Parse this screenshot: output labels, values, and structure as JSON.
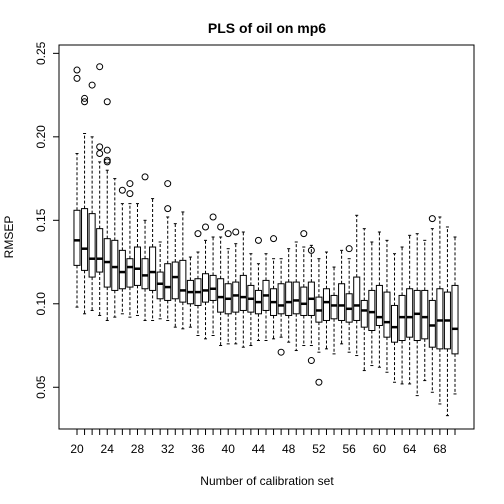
{
  "chart_data": {
    "type": "box",
    "title": "PLS of oil on mp6",
    "xlabel": "Number of calibration set",
    "ylabel": "RMSEP",
    "ylim": [
      0.025,
      0.255
    ],
    "yticks": [
      0.05,
      0.1,
      0.15,
      0.2,
      0.25
    ],
    "ytick_labels": [
      "0.05",
      "0.10",
      "0.15",
      "0.20",
      "0.25"
    ],
    "x": [
      20,
      21,
      22,
      23,
      24,
      25,
      26,
      27,
      28,
      29,
      30,
      31,
      32,
      33,
      34,
      35,
      36,
      37,
      38,
      39,
      40,
      41,
      42,
      43,
      44,
      45,
      46,
      47,
      48,
      49,
      50,
      51,
      52,
      53,
      54,
      55,
      56,
      57,
      58,
      59,
      60,
      61,
      62,
      63,
      64,
      65,
      66,
      67,
      68,
      69,
      70
    ],
    "xtick_labels": [
      "20",
      "24",
      "28",
      "32",
      "36",
      "40",
      "44",
      "48",
      "52",
      "56",
      "60",
      "64",
      "68"
    ],
    "boxes": [
      {
        "x": 20,
        "min": 0.098,
        "q1": 0.123,
        "median": 0.138,
        "q3": 0.156,
        "max": 0.19,
        "outliers": [
          0.235,
          0.24
        ]
      },
      {
        "x": 21,
        "min": 0.094,
        "q1": 0.12,
        "median": 0.133,
        "q3": 0.157,
        "max": 0.202,
        "outliers": [
          0.221,
          0.223
        ]
      },
      {
        "x": 22,
        "min": 0.096,
        "q1": 0.116,
        "median": 0.127,
        "q3": 0.154,
        "max": 0.2,
        "outliers": [
          0.231
        ]
      },
      {
        "x": 23,
        "min": 0.093,
        "q1": 0.119,
        "median": 0.127,
        "q3": 0.145,
        "max": 0.185,
        "outliers": [
          0.242,
          0.194,
          0.19
        ]
      },
      {
        "x": 24,
        "min": 0.09,
        "q1": 0.11,
        "median": 0.125,
        "q3": 0.139,
        "max": 0.18,
        "outliers": [
          0.221,
          0.192,
          0.186,
          0.185
        ]
      },
      {
        "x": 25,
        "min": 0.092,
        "q1": 0.108,
        "median": 0.122,
        "q3": 0.138,
        "max": 0.175,
        "outliers": []
      },
      {
        "x": 26,
        "min": 0.094,
        "q1": 0.109,
        "median": 0.119,
        "q3": 0.132,
        "max": 0.16,
        "outliers": [
          0.168
        ]
      },
      {
        "x": 27,
        "min": 0.092,
        "q1": 0.11,
        "median": 0.122,
        "q3": 0.127,
        "max": 0.16,
        "outliers": [
          0.172,
          0.166
        ]
      },
      {
        "x": 28,
        "min": 0.093,
        "q1": 0.111,
        "median": 0.121,
        "q3": 0.134,
        "max": 0.16,
        "outliers": []
      },
      {
        "x": 29,
        "min": 0.09,
        "q1": 0.109,
        "median": 0.117,
        "q3": 0.127,
        "max": 0.15,
        "outliers": [
          0.176
        ]
      },
      {
        "x": 30,
        "min": 0.09,
        "q1": 0.108,
        "median": 0.119,
        "q3": 0.134,
        "max": 0.163,
        "outliers": []
      },
      {
        "x": 31,
        "min": 0.091,
        "q1": 0.103,
        "median": 0.112,
        "q3": 0.119,
        "max": 0.137,
        "outliers": []
      },
      {
        "x": 32,
        "min": 0.09,
        "q1": 0.102,
        "median": 0.11,
        "q3": 0.124,
        "max": 0.152,
        "outliers": [
          0.172,
          0.157
        ]
      },
      {
        "x": 33,
        "min": 0.086,
        "q1": 0.103,
        "median": 0.116,
        "q3": 0.125,
        "max": 0.148,
        "outliers": []
      },
      {
        "x": 34,
        "min": 0.085,
        "q1": 0.101,
        "median": 0.108,
        "q3": 0.126,
        "max": 0.155,
        "outliers": []
      },
      {
        "x": 35,
        "min": 0.086,
        "q1": 0.1,
        "median": 0.107,
        "q3": 0.114,
        "max": 0.128,
        "outliers": []
      },
      {
        "x": 36,
        "min": 0.081,
        "q1": 0.099,
        "median": 0.107,
        "q3": 0.115,
        "max": 0.131,
        "outliers": [
          0.142
        ]
      },
      {
        "x": 37,
        "min": 0.079,
        "q1": 0.101,
        "median": 0.108,
        "q3": 0.118,
        "max": 0.138,
        "outliers": [
          0.146
        ]
      },
      {
        "x": 38,
        "min": 0.081,
        "q1": 0.102,
        "median": 0.109,
        "q3": 0.117,
        "max": 0.14,
        "outliers": [
          0.152
        ]
      },
      {
        "x": 39,
        "min": 0.075,
        "q1": 0.095,
        "median": 0.104,
        "q3": 0.115,
        "max": 0.14,
        "outliers": [
          0.146
        ]
      },
      {
        "x": 40,
        "min": 0.076,
        "q1": 0.094,
        "median": 0.103,
        "q3": 0.112,
        "max": 0.133,
        "outliers": [
          0.142
        ]
      },
      {
        "x": 41,
        "min": 0.076,
        "q1": 0.095,
        "median": 0.105,
        "q3": 0.113,
        "max": 0.136,
        "outliers": [
          0.143
        ]
      },
      {
        "x": 42,
        "min": 0.074,
        "q1": 0.096,
        "median": 0.104,
        "q3": 0.117,
        "max": 0.143,
        "outliers": []
      },
      {
        "x": 43,
        "min": 0.075,
        "q1": 0.095,
        "median": 0.103,
        "q3": 0.111,
        "max": 0.13,
        "outliers": []
      },
      {
        "x": 44,
        "min": 0.078,
        "q1": 0.094,
        "median": 0.101,
        "q3": 0.108,
        "max": 0.124,
        "outliers": [
          0.138
        ]
      },
      {
        "x": 45,
        "min": 0.078,
        "q1": 0.096,
        "median": 0.105,
        "q3": 0.114,
        "max": 0.13,
        "outliers": []
      },
      {
        "x": 46,
        "min": 0.079,
        "q1": 0.093,
        "median": 0.101,
        "q3": 0.109,
        "max": 0.127,
        "outliers": [
          0.139
        ]
      },
      {
        "x": 47,
        "min": 0.08,
        "q1": 0.094,
        "median": 0.099,
        "q3": 0.112,
        "max": 0.127,
        "outliers": [
          0.071
        ]
      },
      {
        "x": 48,
        "min": 0.077,
        "q1": 0.093,
        "median": 0.101,
        "q3": 0.113,
        "max": 0.133,
        "outliers": []
      },
      {
        "x": 49,
        "min": 0.072,
        "q1": 0.094,
        "median": 0.102,
        "q3": 0.113,
        "max": 0.137,
        "outliers": []
      },
      {
        "x": 50,
        "min": 0.075,
        "q1": 0.093,
        "median": 0.1,
        "q3": 0.11,
        "max": 0.134,
        "outliers": [
          0.142
        ]
      },
      {
        "x": 51,
        "min": 0.075,
        "q1": 0.093,
        "median": 0.103,
        "q3": 0.113,
        "max": 0.135,
        "outliers": [
          0.132,
          0.066
        ]
      },
      {
        "x": 52,
        "min": 0.071,
        "q1": 0.089,
        "median": 0.096,
        "q3": 0.104,
        "max": 0.127,
        "outliers": [
          0.053
        ]
      },
      {
        "x": 53,
        "min": 0.073,
        "q1": 0.09,
        "median": 0.101,
        "q3": 0.109,
        "max": 0.131,
        "outliers": []
      },
      {
        "x": 54,
        "min": 0.07,
        "q1": 0.091,
        "median": 0.099,
        "q3": 0.105,
        "max": 0.122,
        "outliers": []
      },
      {
        "x": 55,
        "min": 0.076,
        "q1": 0.09,
        "median": 0.099,
        "q3": 0.112,
        "max": 0.132,
        "outliers": []
      },
      {
        "x": 56,
        "min": 0.071,
        "q1": 0.089,
        "median": 0.097,
        "q3": 0.106,
        "max": 0.127,
        "outliers": [
          0.133
        ]
      },
      {
        "x": 57,
        "min": 0.069,
        "q1": 0.09,
        "median": 0.099,
        "q3": 0.116,
        "max": 0.153,
        "outliers": []
      },
      {
        "x": 58,
        "min": 0.06,
        "q1": 0.086,
        "median": 0.096,
        "q3": 0.102,
        "max": 0.145,
        "outliers": []
      },
      {
        "x": 59,
        "min": 0.063,
        "q1": 0.084,
        "median": 0.095,
        "q3": 0.108,
        "max": 0.137,
        "outliers": []
      },
      {
        "x": 60,
        "min": 0.062,
        "q1": 0.087,
        "median": 0.092,
        "q3": 0.111,
        "max": 0.143,
        "outliers": []
      },
      {
        "x": 61,
        "min": 0.059,
        "q1": 0.08,
        "median": 0.089,
        "q3": 0.107,
        "max": 0.138,
        "outliers": []
      },
      {
        "x": 62,
        "min": 0.053,
        "q1": 0.077,
        "median": 0.086,
        "q3": 0.099,
        "max": 0.13,
        "outliers": []
      },
      {
        "x": 63,
        "min": 0.052,
        "q1": 0.078,
        "median": 0.092,
        "q3": 0.105,
        "max": 0.134,
        "outliers": []
      },
      {
        "x": 64,
        "min": 0.052,
        "q1": 0.08,
        "median": 0.092,
        "q3": 0.109,
        "max": 0.141,
        "outliers": []
      },
      {
        "x": 65,
        "min": 0.045,
        "q1": 0.078,
        "median": 0.094,
        "q3": 0.108,
        "max": 0.142,
        "outliers": []
      },
      {
        "x": 66,
        "min": 0.054,
        "q1": 0.079,
        "median": 0.092,
        "q3": 0.108,
        "max": 0.138,
        "outliers": []
      },
      {
        "x": 67,
        "min": 0.047,
        "q1": 0.074,
        "median": 0.087,
        "q3": 0.102,
        "max": 0.145,
        "outliers": [
          0.151
        ]
      },
      {
        "x": 68,
        "min": 0.04,
        "q1": 0.073,
        "median": 0.09,
        "q3": 0.109,
        "max": 0.152,
        "outliers": []
      },
      {
        "x": 69,
        "min": 0.033,
        "q1": 0.073,
        "median": 0.09,
        "q3": 0.107,
        "max": 0.146,
        "outliers": []
      },
      {
        "x": 70,
        "min": 0.046,
        "q1": 0.07,
        "median": 0.085,
        "q3": 0.111,
        "max": 0.14,
        "outliers": []
      }
    ]
  }
}
